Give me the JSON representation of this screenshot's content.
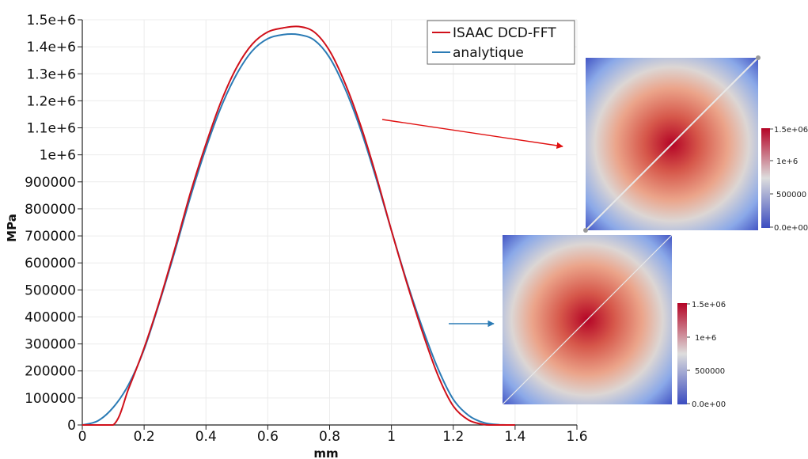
{
  "chart_data": {
    "type": "line",
    "title": "",
    "xlabel": "mm",
    "ylabel": "MPa",
    "xlim": [
      0,
      1.6
    ],
    "ylim": [
      0,
      1500000
    ],
    "grid": true,
    "legend_position": "top-center",
    "x_tick_labels": [
      "0",
      "0.2",
      "0.4",
      "0.6",
      "0.8",
      "1",
      "1.2",
      "1.4",
      "1.6"
    ],
    "y_tick_labels": [
      "0",
      "100000",
      "200000",
      "300000",
      "400000",
      "500000",
      "600000",
      "700000",
      "800000",
      "900000",
      "1e+6",
      "1.1e+6",
      "1.2e+6",
      "1.3e+6",
      "1.4e+6",
      "1.5e+6"
    ],
    "series": [
      {
        "name": "ISAAC DCD-FFT",
        "color": "#d0101a",
        "x": [
          0,
          0.1,
          0.15,
          0.2,
          0.25,
          0.3,
          0.35,
          0.4,
          0.45,
          0.5,
          0.55,
          0.6,
          0.65,
          0.7,
          0.75,
          0.8,
          0.85,
          0.9,
          0.95,
          1.0,
          1.05,
          1.1,
          1.15,
          1.2,
          1.25,
          1.3,
          1.32,
          1.4
        ],
        "y": [
          0,
          0,
          135000,
          285000,
          460000,
          655000,
          860000,
          1040000,
          1200000,
          1325000,
          1410000,
          1455000,
          1470000,
          1475000,
          1455000,
          1385000,
          1265000,
          1110000,
          925000,
          720000,
          525000,
          345000,
          185000,
          70000,
          18000,
          1500,
          0,
          0
        ]
      },
      {
        "name": "analytique",
        "color": "#2b7bb5",
        "x": [
          0,
          0.05,
          0.1,
          0.15,
          0.2,
          0.25,
          0.3,
          0.35,
          0.4,
          0.45,
          0.5,
          0.55,
          0.6,
          0.65,
          0.7,
          0.75,
          0.8,
          0.85,
          0.9,
          0.95,
          1.0,
          1.05,
          1.1,
          1.15,
          1.2,
          1.25,
          1.3,
          1.35,
          1.4
        ],
        "y": [
          0,
          15000,
          65000,
          150000,
          280000,
          455000,
          645000,
          845000,
          1025000,
          1180000,
          1300000,
          1385000,
          1430000,
          1445000,
          1445000,
          1425000,
          1360000,
          1245000,
          1095000,
          915000,
          720000,
          530000,
          360000,
          210000,
          95000,
          35000,
          8000,
          800,
          0
        ]
      }
    ],
    "annotations": [
      {
        "type": "arrow",
        "color": "#e01010",
        "points_to": "top-heatmap"
      },
      {
        "type": "arrow",
        "color": "#2b7bb5",
        "points_to": "bottom-heatmap"
      }
    ]
  },
  "insets": [
    {
      "name": "top-heatmap",
      "colormap": [
        "#3b4cc0",
        "#dddddd",
        "#b40426"
      ],
      "colorbar_labels": [
        "1.5e+06",
        "1e+6",
        "500000",
        "0.0e+00"
      ]
    },
    {
      "name": "bottom-heatmap",
      "colormap": [
        "#3b4cc0",
        "#dddddd",
        "#b40426"
      ],
      "colorbar_labels": [
        "1.5e+06",
        "1e+6",
        "500000",
        "0.0e+00"
      ]
    }
  ]
}
